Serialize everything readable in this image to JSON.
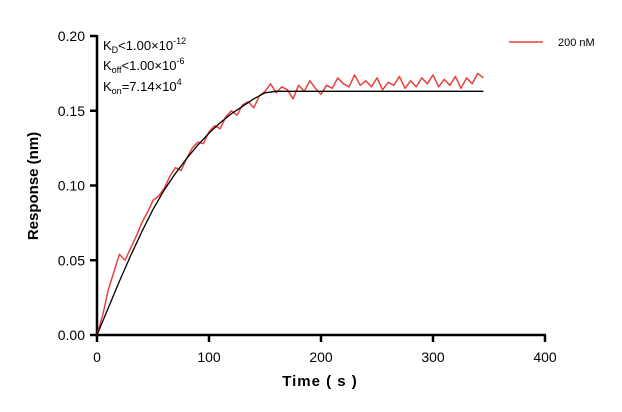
{
  "chart_data": {
    "type": "line",
    "title": "",
    "xlabel": "Time ( s )",
    "ylabel": "Response (nm)",
    "xlim": [
      0,
      400
    ],
    "ylim": [
      0,
      0.2
    ],
    "xticks": [
      "0",
      "100",
      "200",
      "300",
      "400"
    ],
    "yticks": [
      "0.00",
      "0.05",
      "0.10",
      "0.15",
      "0.20"
    ],
    "grid": false,
    "legend_position": "top-right",
    "annotations": {
      "kd": {
        "sym": "K",
        "sub": "D",
        "rel": "<1.00×10",
        "exp": "-12"
      },
      "koff": {
        "sym": "K",
        "sub": "off",
        "rel": "<1.00×10",
        "exp": "-6"
      },
      "kon": {
        "sym": "K",
        "sub": "on",
        "rel": "=7.14×10",
        "exp": "4"
      }
    },
    "series": [
      {
        "name": "200 nM",
        "color": "#e8413c",
        "x": [
          0,
          5,
          10,
          15,
          20,
          25,
          30,
          35,
          40,
          45,
          50,
          55,
          60,
          65,
          70,
          75,
          80,
          85,
          90,
          95,
          100,
          105,
          110,
          115,
          120,
          125,
          130,
          135,
          140,
          145,
          150,
          155,
          160,
          165,
          170,
          175,
          180,
          185,
          190,
          195,
          200,
          205,
          210,
          215,
          220,
          225,
          230,
          235,
          240,
          245,
          250,
          255,
          260,
          265,
          270,
          275,
          280,
          285,
          290,
          295,
          300,
          305,
          310,
          315,
          320,
          325,
          330,
          335,
          340,
          345
        ],
        "y": [
          0.0,
          0.013,
          0.03,
          0.042,
          0.054,
          0.05,
          0.058,
          0.066,
          0.075,
          0.082,
          0.09,
          0.093,
          0.098,
          0.106,
          0.112,
          0.11,
          0.118,
          0.125,
          0.129,
          0.128,
          0.136,
          0.14,
          0.138,
          0.146,
          0.15,
          0.147,
          0.154,
          0.156,
          0.152,
          0.16,
          0.163,
          0.168,
          0.162,
          0.166,
          0.164,
          0.158,
          0.167,
          0.163,
          0.17,
          0.165,
          0.161,
          0.167,
          0.165,
          0.172,
          0.168,
          0.166,
          0.174,
          0.167,
          0.17,
          0.166,
          0.172,
          0.164,
          0.169,
          0.167,
          0.173,
          0.165,
          0.17,
          0.166,
          0.172,
          0.168,
          0.174,
          0.166,
          0.171,
          0.167,
          0.173,
          0.165,
          0.172,
          0.168,
          0.175,
          0.172
        ]
      },
      {
        "color": "#000000",
        "x": [
          0,
          10,
          20,
          30,
          40,
          50,
          60,
          70,
          80,
          90,
          100,
          110,
          120,
          130,
          140,
          150,
          160,
          345
        ],
        "y": [
          0,
          0.018,
          0.036,
          0.053,
          0.069,
          0.084,
          0.097,
          0.108,
          0.118,
          0.127,
          0.135,
          0.142,
          0.148,
          0.153,
          0.158,
          0.162,
          0.163,
          0.163
        ]
      }
    ]
  }
}
